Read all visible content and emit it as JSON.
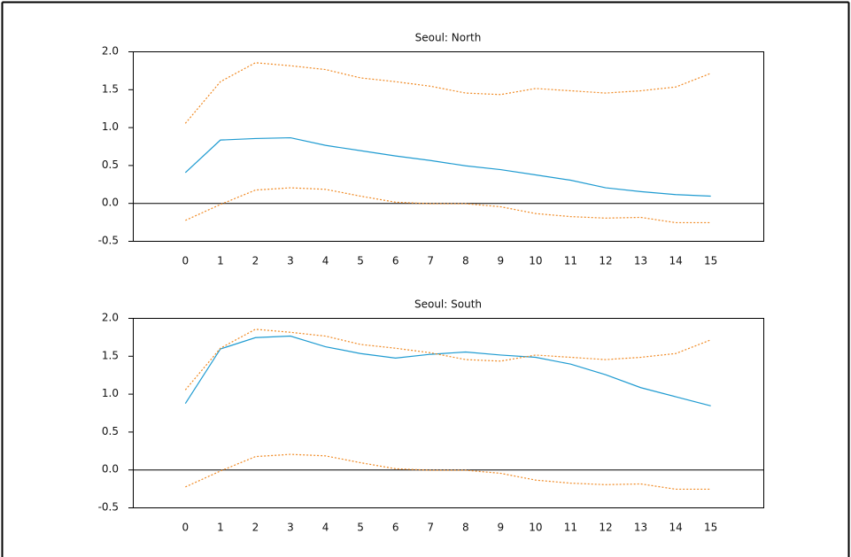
{
  "chart_data": [
    {
      "type": "line",
      "title": "Seoul: North",
      "x": [
        0,
        1,
        2,
        3,
        4,
        5,
        6,
        7,
        8,
        9,
        10,
        11,
        12,
        13,
        14,
        15
      ],
      "xlim": [
        -1.5,
        16.5
      ],
      "xticks": [
        0,
        1,
        2,
        3,
        4,
        5,
        6,
        7,
        8,
        9,
        10,
        11,
        12,
        13,
        14,
        15
      ],
      "ylim": [
        -0.5,
        2.0
      ],
      "yticks": [
        {
          "value": -0.5,
          "label": "-0.5"
        },
        {
          "value": 0,
          "label": "0.0"
        },
        {
          "value": 0.5,
          "label": "0.5"
        },
        {
          "value": 1,
          "label": "1.0"
        },
        {
          "value": 1.5,
          "label": "1.5"
        },
        {
          "value": 2,
          "label": "2.0"
        }
      ],
      "zero_line": true,
      "series": [
        {
          "color": "#1f9bd1",
          "dash": "solid",
          "values": [
            0.4,
            0.83,
            0.85,
            0.86,
            0.76,
            0.69,
            0.62,
            0.56,
            0.49,
            0.44,
            0.37,
            0.3,
            0.2,
            0.15,
            0.11,
            0.09
          ]
        },
        {
          "color": "#f08a24",
          "dash": "dotted",
          "values": [
            1.05,
            1.6,
            1.85,
            1.81,
            1.76,
            1.65,
            1.6,
            1.54,
            1.45,
            1.43,
            1.51,
            1.48,
            1.45,
            1.48,
            1.53,
            1.71
          ]
        },
        {
          "color": "#f08a24",
          "dash": "dotted",
          "values": [
            -0.23,
            -0.02,
            0.17,
            0.2,
            0.18,
            0.09,
            0.01,
            -0.01,
            -0.01,
            -0.05,
            -0.14,
            -0.18,
            -0.2,
            -0.19,
            -0.26,
            -0.26
          ]
        }
      ]
    },
    {
      "type": "line",
      "title": "Seoul: South",
      "x": [
        0,
        1,
        2,
        3,
        4,
        5,
        6,
        7,
        8,
        9,
        10,
        11,
        12,
        13,
        14,
        15
      ],
      "xlim": [
        -1.5,
        16.5
      ],
      "xticks": [
        0,
        1,
        2,
        3,
        4,
        5,
        6,
        7,
        8,
        9,
        10,
        11,
        12,
        13,
        14,
        15
      ],
      "ylim": [
        -0.5,
        2.0
      ],
      "yticks": [
        {
          "value": -0.5,
          "label": "-0.5"
        },
        {
          "value": 0,
          "label": "0.0"
        },
        {
          "value": 0.5,
          "label": "0.5"
        },
        {
          "value": 1,
          "label": "1.0"
        },
        {
          "value": 1.5,
          "label": "1.5"
        },
        {
          "value": 2,
          "label": "2.0"
        }
      ],
      "zero_line": true,
      "series": [
        {
          "color": "#1f9bd1",
          "dash": "solid",
          "values": [
            0.87,
            1.59,
            1.74,
            1.76,
            1.62,
            1.53,
            1.47,
            1.52,
            1.55,
            1.51,
            1.48,
            1.39,
            1.25,
            1.08,
            0.96,
            0.84
          ]
        },
        {
          "color": "#f08a24",
          "dash": "dotted",
          "values": [
            1.05,
            1.6,
            1.85,
            1.81,
            1.76,
            1.65,
            1.6,
            1.54,
            1.45,
            1.43,
            1.51,
            1.48,
            1.45,
            1.48,
            1.53,
            1.71
          ]
        },
        {
          "color": "#f08a24",
          "dash": "dotted",
          "values": [
            -0.23,
            -0.02,
            0.17,
            0.2,
            0.18,
            0.09,
            0.01,
            -0.01,
            -0.01,
            -0.05,
            -0.14,
            -0.18,
            -0.2,
            -0.19,
            -0.26,
            -0.26
          ]
        }
      ]
    }
  ]
}
